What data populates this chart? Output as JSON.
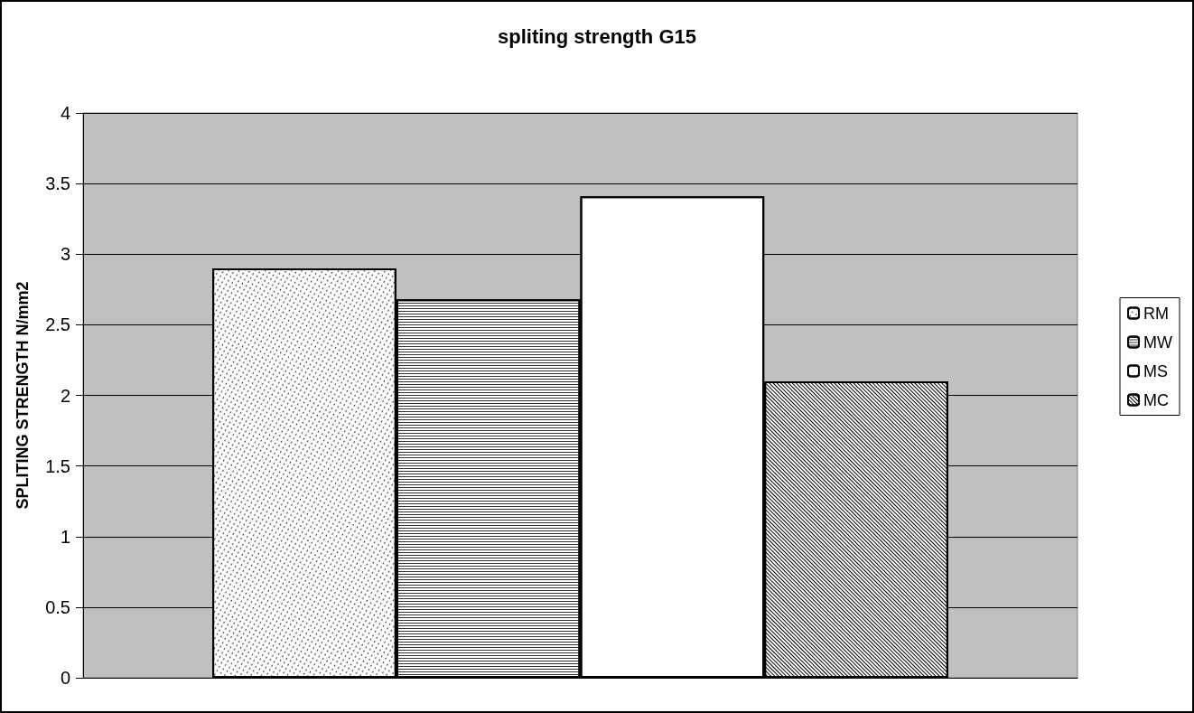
{
  "chart_data": {
    "type": "bar",
    "title": "spliting strength G15",
    "ylabel": "SPLITING STRENGTH N/mm2",
    "categories": [
      null
    ],
    "series": [
      {
        "name": "RM",
        "color": "#ffffff",
        "values": [
          2.9
        ]
      },
      {
        "name": "MW",
        "color": "#ffffff",
        "values": [
          2.68
        ]
      },
      {
        "name": "MS",
        "color": "#ffffff",
        "values": [
          3.41
        ]
      },
      {
        "name": "MC",
        "color": "#ffffff",
        "values": [
          2.1
        ]
      }
    ],
    "ylim": [
      0,
      4
    ],
    "yticks": [
      0,
      0.5,
      1,
      1.5,
      2,
      2.5,
      3,
      3.5,
      4
    ],
    "grid": "y",
    "legend": "right"
  }
}
